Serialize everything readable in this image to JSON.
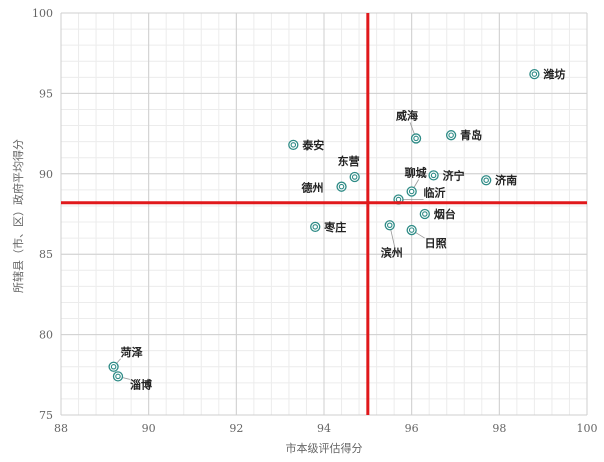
{
  "chart_data": {
    "type": "scatter",
    "title": "",
    "xlabel": "市本级评估得分",
    "ylabel": "所辖县（市、区）政府平均得分",
    "xlim": [
      88,
      100
    ],
    "ylim": [
      75,
      100
    ],
    "x_ticks": [
      "88",
      "90",
      "92",
      "94",
      "96",
      "98",
      "100"
    ],
    "y_ticks": [
      "75",
      "80",
      "85",
      "90",
      "95",
      "100"
    ],
    "grid": true,
    "reference_lines": {
      "x": 95.0,
      "y": 88.2,
      "color": "#e0181b"
    },
    "marker_color": "#2e8b86",
    "points": [
      {
        "name": "潍坊",
        "x": 98.8,
        "y": 96.2
      },
      {
        "name": "威海",
        "x": 96.1,
        "y": 92.2
      },
      {
        "name": "青岛",
        "x": 96.9,
        "y": 92.4
      },
      {
        "name": "泰安",
        "x": 93.3,
        "y": 91.8
      },
      {
        "name": "东营",
        "x": 94.7,
        "y": 89.8
      },
      {
        "name": "德州",
        "x": 94.4,
        "y": 89.2
      },
      {
        "name": "聊城",
        "x": 96.0,
        "y": 88.9
      },
      {
        "name": "济宁",
        "x": 96.5,
        "y": 89.9
      },
      {
        "name": "济南",
        "x": 97.7,
        "y": 89.6
      },
      {
        "name": "临沂",
        "x": 95.7,
        "y": 88.4
      },
      {
        "name": "烟台",
        "x": 96.3,
        "y": 87.5
      },
      {
        "name": "日照",
        "x": 96.0,
        "y": 86.5
      },
      {
        "name": "滨州",
        "x": 95.5,
        "y": 86.8
      },
      {
        "name": "枣庄",
        "x": 93.8,
        "y": 86.7
      },
      {
        "name": "菏泽",
        "x": 89.2,
        "y": 78.0
      },
      {
        "name": "淄博",
        "x": 89.3,
        "y": 77.4
      }
    ]
  }
}
